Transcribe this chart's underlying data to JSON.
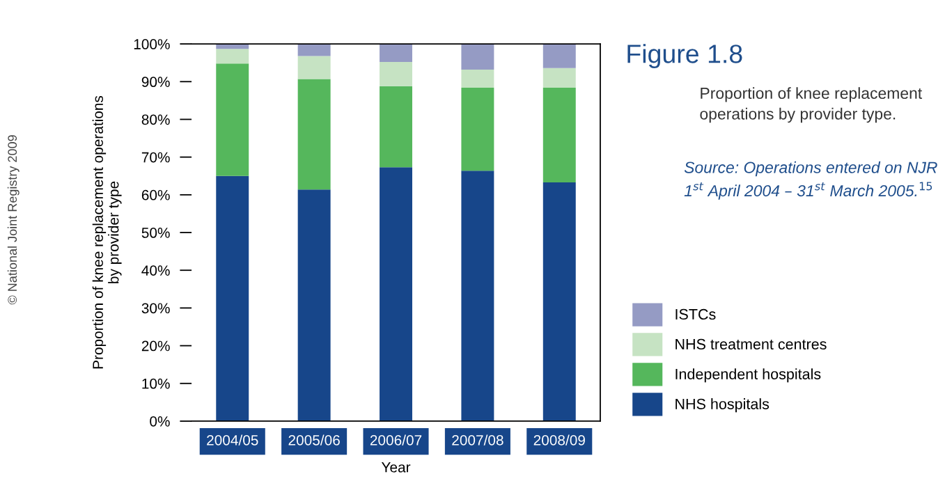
{
  "chart_data": {
    "type": "bar",
    "stacked": true,
    "title": "Figure 1.8",
    "subtitle": "Proportion of knee replacement operations by provider type.",
    "xlabel": "Year",
    "ylabel": "Proportion of knee replacement operations\nby provider type",
    "categories": [
      "2004/05",
      "2005/06",
      "2006/07",
      "2007/08",
      "2008/09"
    ],
    "series": [
      {
        "name": "NHS hospitals",
        "color": "#17468a",
        "values": [
          65.0,
          61.4,
          67.3,
          66.4,
          63.3
        ]
      },
      {
        "name": "Independent hospitals",
        "color": "#55b75c",
        "values": [
          29.8,
          29.3,
          21.5,
          22.0,
          25.1
        ]
      },
      {
        "name": "NHS treatment centres",
        "color": "#c6e3c3",
        "values": [
          3.9,
          6.1,
          6.4,
          4.8,
          5.2
        ]
      },
      {
        "name": "ISTCs",
        "color": "#959bc4",
        "values": [
          1.3,
          3.2,
          4.8,
          6.8,
          6.4
        ]
      }
    ],
    "ylim": [
      0,
      100
    ],
    "yticks": [
      {
        "value": 0,
        "label": "0%"
      },
      {
        "value": 10,
        "label": "10%"
      },
      {
        "value": 20,
        "label": "20%"
      },
      {
        "value": 30,
        "label": "30%"
      },
      {
        "value": 40,
        "label": "40%"
      },
      {
        "value": 50,
        "label": "50%"
      },
      {
        "value": 60,
        "label": "60%"
      },
      {
        "value": 70,
        "label": "70%"
      },
      {
        "value": 80,
        "label": "80%"
      },
      {
        "value": 90,
        "label": "90%"
      },
      {
        "value": 100,
        "label": "100%"
      }
    ],
    "grid": false,
    "legend": "right",
    "annotations": [
      "Source: Operations entered on NJR 1$^{st}$ April 2004 – 31$^{st}$ March 2005.$^{15}$",
      "© National Joint Registry 2009"
    ]
  }
}
